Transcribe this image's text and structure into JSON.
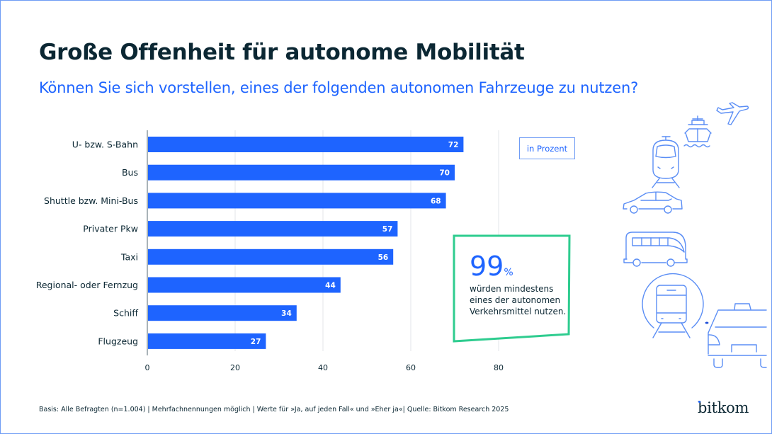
{
  "header": {
    "title": "Große Offenheit für autonome Mobilität",
    "subtitle": "Können Sie sich vorstellen, eines der folgenden autonomen Fahrzeuge zu nutzen?"
  },
  "unit_label": "in Prozent",
  "callout": {
    "value": "99",
    "unit": "%",
    "text": "würden mindestens eines der autonomen Verkehrsmittel nutzen."
  },
  "footnote": "Basis: Alle Befragten (n=1.004) | Mehrfachnennungen möglich | Werte für »Ja, auf jeden Fall« und »Eher ja«| Quelle: Bitkom Research 2025",
  "logo": "bitkom",
  "colors": {
    "bar": "#1e64ff",
    "accent_green": "#2ecc8f",
    "text_dark": "#0b2733",
    "icon_blue": "#5b8ef5"
  },
  "icons": [
    "plane-icon",
    "ship-icon",
    "tram-icon",
    "car-icon",
    "bus-icon",
    "subway-train-icon",
    "taxi-icon"
  ],
  "chart_data": {
    "type": "bar",
    "orientation": "horizontal",
    "title": "Große Offenheit für autonome Mobilität",
    "subtitle": "Können Sie sich vorstellen, eines der folgenden autonomen Fahrzeuge zu nutzen?",
    "categories": [
      "U- bzw. S-Bahn",
      "Bus",
      "Shuttle bzw. Mini-Bus",
      "Privater Pkw",
      "Taxi",
      "Regional- oder Fernzug",
      "Schiff",
      "Flugzeug"
    ],
    "values": [
      72,
      70,
      68,
      57,
      56,
      44,
      34,
      27
    ],
    "xlabel": "",
    "ylabel": "",
    "unit": "in Prozent",
    "xlim": [
      0,
      80
    ],
    "xticks": [
      0,
      20,
      40,
      60,
      80
    ],
    "grid": true,
    "data_labels": true
  }
}
